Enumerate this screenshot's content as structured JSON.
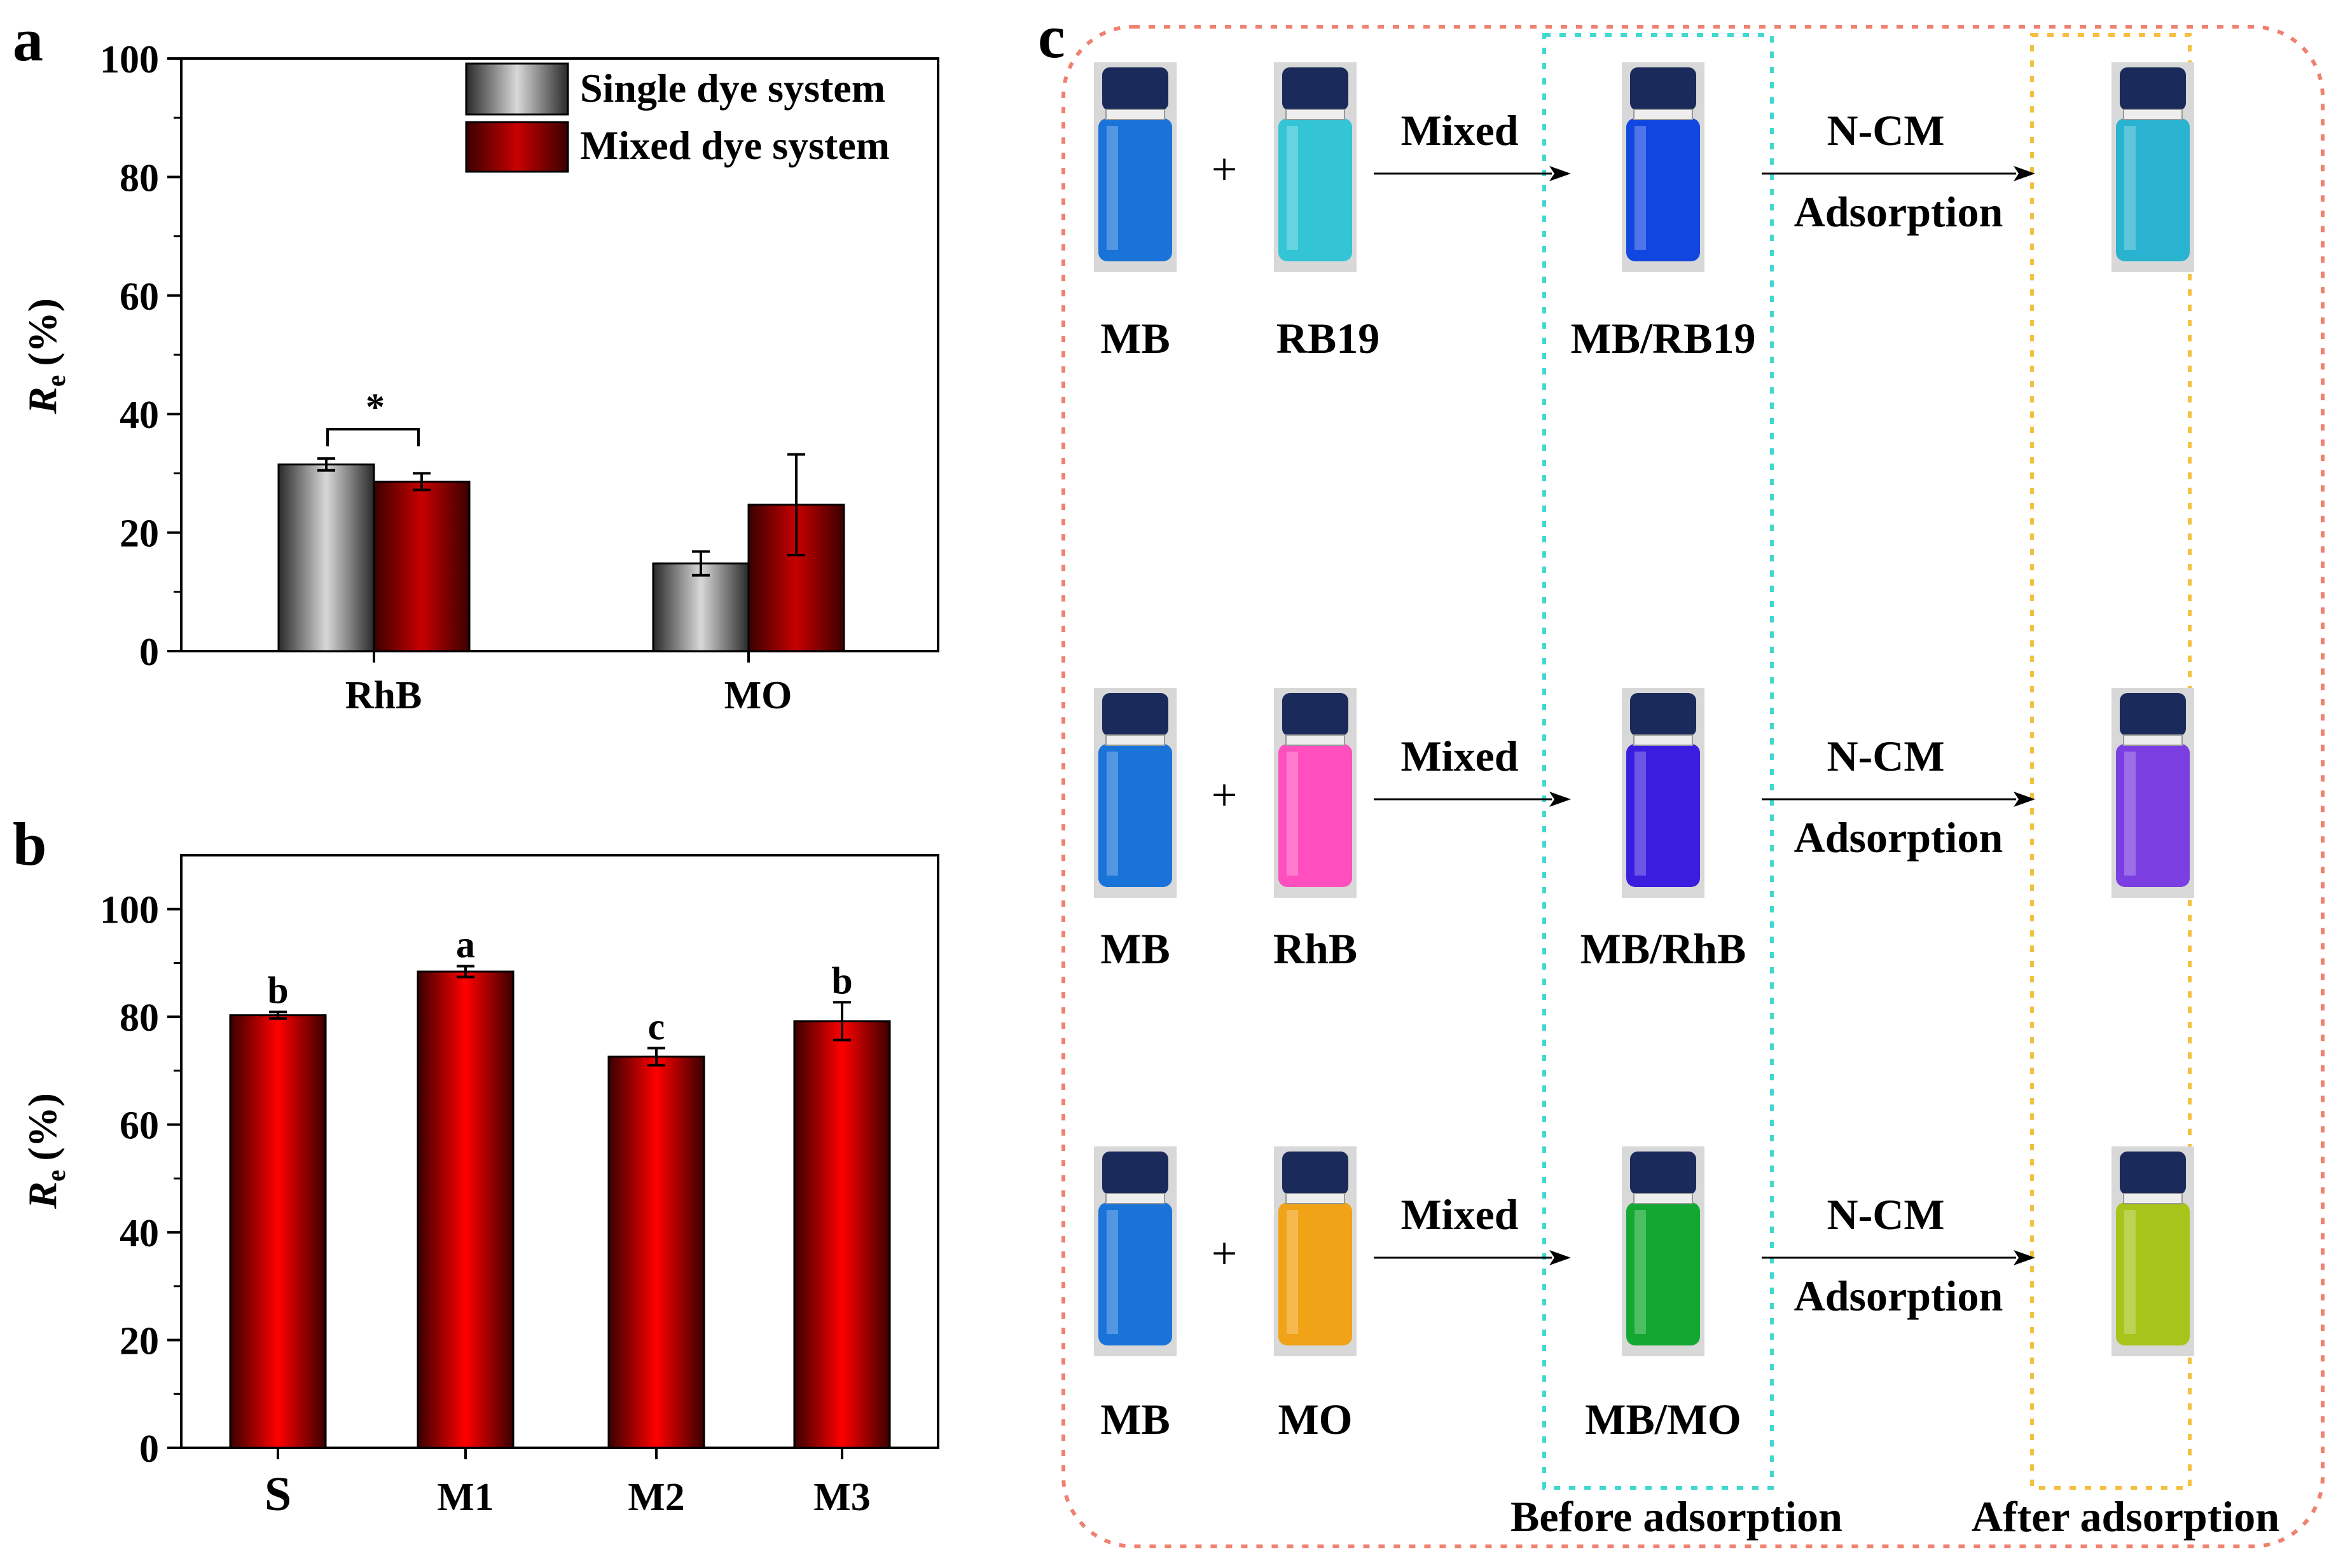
{
  "panels": {
    "a": "a",
    "b": "b",
    "c": "c"
  },
  "chart_data": [
    {
      "id": "a",
      "type": "bar",
      "categories": [
        "RhB",
        "MO"
      ],
      "series": [
        {
          "name": "Single dye system",
          "values": [
            31.5,
            14.8
          ],
          "errors": [
            1.0,
            2.0
          ],
          "color": "#555555"
        },
        {
          "name": "Mixed dye system",
          "values": [
            28.6,
            24.7
          ],
          "errors": [
            1.4,
            8.5
          ],
          "color": "#a00000"
        }
      ],
      "ylabel": "Re (%)",
      "ylabel_main": "R",
      "ylabel_sub": "e",
      "ylabel_unit": "(%)",
      "ylim": [
        0,
        100
      ],
      "yticks": [
        "0",
        "20",
        "40",
        "60",
        "80",
        "100"
      ],
      "legend": "top-right",
      "annotation": "*"
    },
    {
      "id": "b",
      "type": "bar",
      "categories": [
        "S",
        "M1",
        "M2",
        "M3"
      ],
      "values": [
        80.3,
        88.4,
        72.6,
        79.2
      ],
      "errors": [
        0.6,
        1.0,
        1.6,
        3.5
      ],
      "letters": [
        "b",
        "a",
        "c",
        "b"
      ],
      "color": "#ff0000",
      "ylabel": "Re (%)",
      "ylabel_main": "R",
      "ylabel_sub": "e",
      "ylabel_unit": "(%)",
      "ylim": [
        0,
        110
      ],
      "yticks": [
        "0",
        "20",
        "40",
        "60",
        "80",
        "100"
      ]
    }
  ],
  "diagram_c": {
    "rows": [
      {
        "dye1": "MB",
        "dye2": "RB19",
        "mixed": "MB/RB19",
        "arrow1": "Mixed",
        "arrow2_top": "N-CM",
        "arrow2_bottom": "Adsorption",
        "color1": "#1a73d8",
        "color2": "#33c4d6",
        "mixed_color": "#1246e0",
        "after_color": "#2ab3d0"
      },
      {
        "dye1": "MB",
        "dye2": "RhB",
        "mixed": "MB/RhB",
        "arrow1": "Mixed",
        "arrow2_top": "N-CM",
        "arrow2_bottom": "Adsorption",
        "color1": "#1a73d8",
        "color2": "#ff4fbf",
        "mixed_color": "#3a1ee0",
        "after_color": "#7b3ee0"
      },
      {
        "dye1": "MB",
        "dye2": "MO",
        "mixed": "MB/MO",
        "arrow1": "Mixed",
        "arrow2_top": "N-CM",
        "arrow2_bottom": "Adsorption",
        "color1": "#1a73d8",
        "color2": "#f0a316",
        "mixed_color": "#13a832",
        "after_color": "#a6c41a"
      }
    ],
    "plus": "+",
    "before_label": "Before adsorption",
    "after_label": "After adsorption",
    "colors": {
      "outer_box": "#f08070",
      "before_box": "#40d8d0",
      "after_box": "#f5c040",
      "cap": "#1a2a5a"
    }
  }
}
